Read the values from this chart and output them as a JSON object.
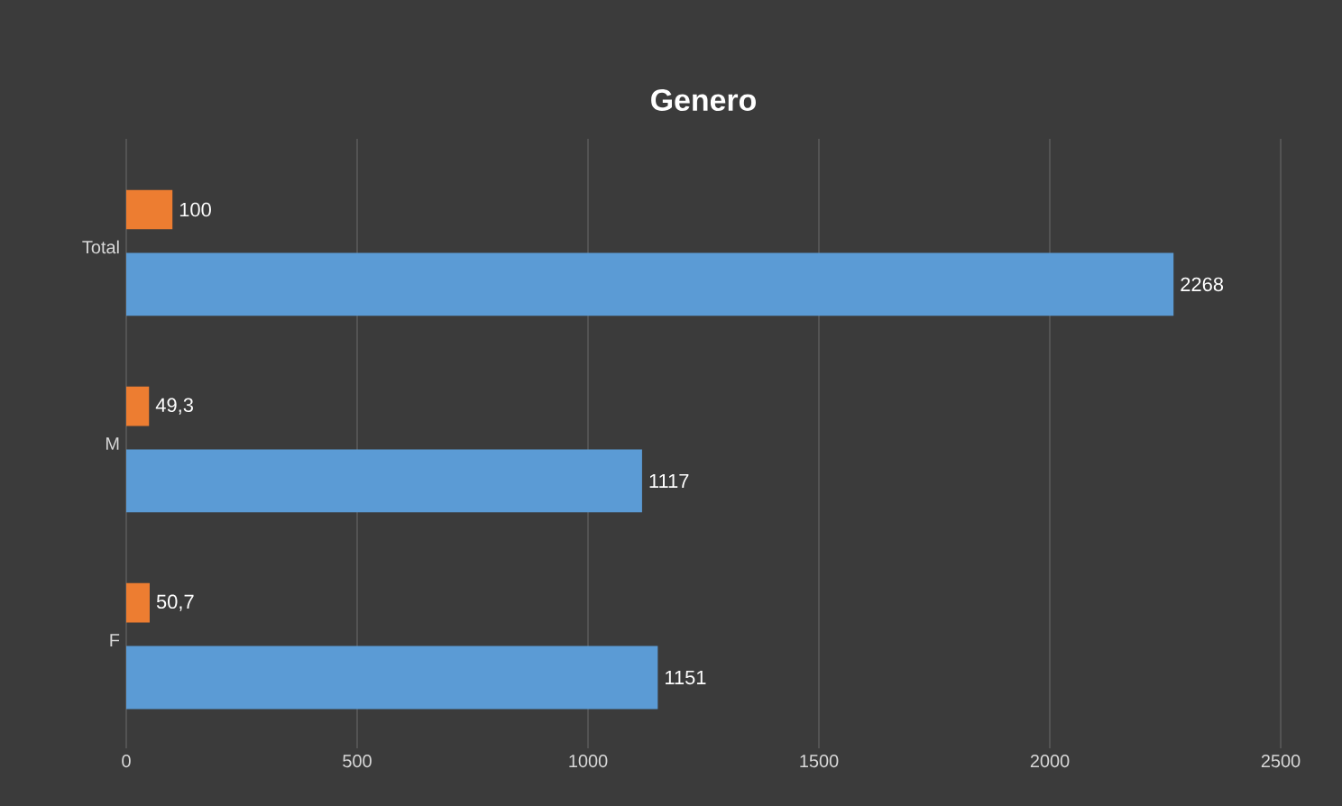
{
  "chart_data": {
    "type": "bar",
    "orientation": "horizontal",
    "title": "Genero",
    "categories": [
      "Total",
      "M",
      "F"
    ],
    "series": [
      {
        "color": "#ed7d31",
        "values": [
          100,
          49.3,
          50.7
        ],
        "value_labels": [
          "100",
          "49,3",
          "50,7"
        ]
      },
      {
        "color": "#5b9bd5",
        "values": [
          2268,
          1117,
          1151
        ],
        "value_labels": [
          "2268",
          "1117",
          "1151"
        ]
      }
    ],
    "xlim": [
      0,
      2500
    ],
    "xticks": [
      0,
      500,
      1000,
      1500,
      2000,
      2500
    ],
    "grid": "x"
  }
}
